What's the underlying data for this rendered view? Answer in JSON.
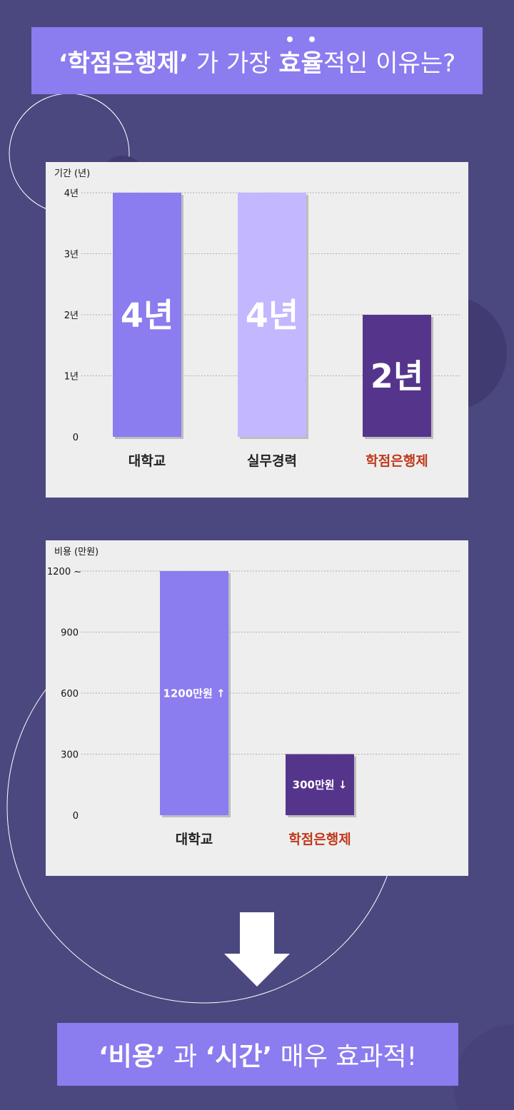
{
  "header": {
    "quoted": "‘학점은행제’",
    "mid": " 가 가장 ",
    "emph": "효율",
    "tail": "적인 이유는?"
  },
  "chart_data": [
    {
      "type": "bar",
      "ylabel": "기간 (년)",
      "yticks": [
        "0",
        "1년",
        "2년",
        "3년",
        "4년"
      ],
      "ylim": [
        0,
        4
      ],
      "grid": "dotted",
      "categories": [
        "대학교",
        "실무경력",
        "학점은행제"
      ],
      "values": [
        4,
        4,
        2
      ],
      "value_labels": [
        "4년",
        "4년",
        "2년"
      ],
      "colors": [
        "#8b7cf0",
        "#c3b7ff",
        "#55358c"
      ],
      "category_colors": [
        "#222222",
        "#222222",
        "#c0391b"
      ]
    },
    {
      "type": "bar",
      "ylabel": "비용 (만원)",
      "yticks": [
        "0",
        "300",
        "600",
        "900",
        "1200 ~"
      ],
      "ylim": [
        0,
        1200
      ],
      "grid": "dotted",
      "categories": [
        "대학교",
        "학점은행제"
      ],
      "values": [
        1200,
        300
      ],
      "value_labels": [
        "1200만원 ↑",
        "300만원 ↓"
      ],
      "colors": [
        "#8b7cf0",
        "#55358c"
      ],
      "category_colors": [
        "#222222",
        "#c0391b"
      ]
    }
  ],
  "footer": {
    "q1": "‘비용’",
    "mid": " 과 ",
    "q2": "‘시간’",
    "tail": " 매우 효과적!"
  },
  "colors": {
    "background": "#4b4880",
    "banner": "#8b7cf0",
    "arrow": "#ffffff"
  }
}
